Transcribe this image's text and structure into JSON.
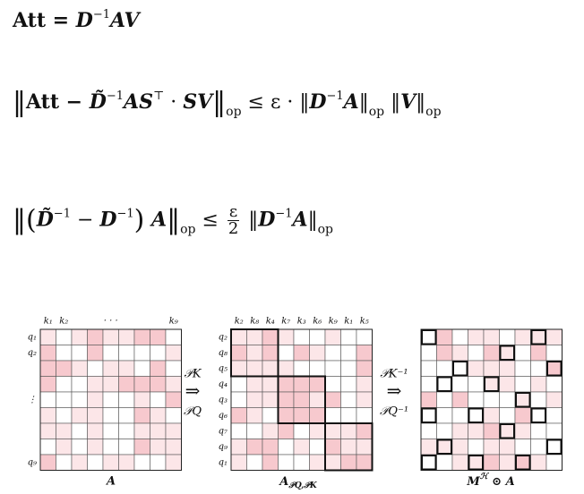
{
  "equations": [
    [
      "Att = ",
      "D",
      "−1",
      "AV"
    ],
    [
      "‖",
      "Att − ",
      "D̃",
      "−1",
      "AS",
      "⊤",
      " · ",
      "SV",
      "‖",
      "op",
      " ≤ ε · ‖",
      "D",
      "−1",
      "A",
      "‖",
      "op",
      " ‖",
      "V",
      "‖",
      "op"
    ],
    [
      "‖",
      "(",
      "D̃",
      "−1",
      " − ",
      "D",
      "−1",
      ")",
      " A",
      "‖",
      "op",
      " ≤ ",
      "ε",
      "2",
      " ‖",
      "D",
      "−1",
      "A",
      "‖",
      "op"
    ]
  ],
  "matrices": [
    {
      "col_labels": [
        "k₁",
        "k₂",
        null,
        null,
        "· · ·",
        null,
        null,
        null,
        "k₉"
      ],
      "row_labels": [
        "q₁",
        "q₂",
        null,
        null,
        "⋮",
        null,
        null,
        null,
        "q₉"
      ],
      "caption": [
        "A"
      ]
    },
    {
      "col_labels": [
        "k₂",
        "k₈",
        "k₄",
        "k₇",
        "k₃",
        "k₆",
        "k₉",
        "k₁",
        "k₅"
      ],
      "row_labels": [
        "q₂",
        "q₈",
        "q₅",
        "q₄",
        "q₃",
        "q₆",
        "q₇",
        "q₉",
        "q₁"
      ],
      "caption": [
        "A",
        "𝒫Q,𝒫K"
      ]
    },
    {
      "col_labels": [],
      "row_labels": [],
      "caption": [
        "M",
        "ℋ",
        " ⊙ A"
      ]
    }
  ],
  "arrows": [
    [
      "𝒫K",
      "⇒",
      "𝒫Q"
    ],
    [
      "𝒫K⁻¹",
      "⇒",
      "𝒫Q⁻¹"
    ]
  ]
}
